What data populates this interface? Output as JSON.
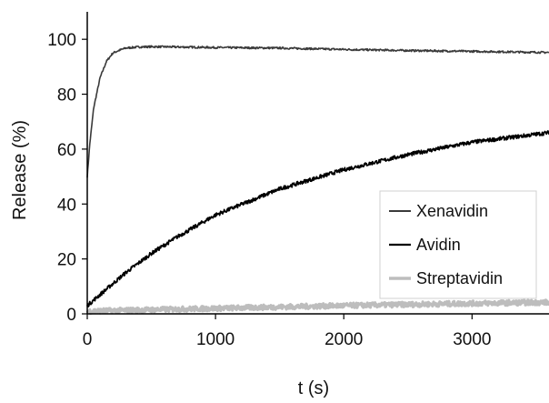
{
  "chart_data": {
    "type": "line",
    "xlabel": "t (s)",
    "ylabel": "Release (%)",
    "xlim": [
      0,
      3600
    ],
    "ylim": [
      0,
      110
    ],
    "x_ticks": [
      0,
      1000,
      2000,
      3000
    ],
    "y_ticks": [
      0,
      20,
      40,
      60,
      80,
      100
    ],
    "grid": false,
    "legend_position": "right-middle",
    "series": [
      {
        "name": "Xenavidin",
        "color": "#3a3a3a",
        "x": [
          0,
          20,
          50,
          100,
          150,
          200,
          250,
          300,
          350,
          400,
          500,
          700,
          1000,
          1500,
          2000,
          2500,
          3000,
          3600
        ],
        "y": [
          50,
          62,
          75,
          86,
          92,
          95,
          96,
          96.8,
          97,
          97.2,
          97.3,
          97.2,
          97,
          96.8,
          96.3,
          95.9,
          95.6,
          95.2
        ]
      },
      {
        "name": "Avidin",
        "color": "#000000",
        "x": [
          0,
          100,
          200,
          300,
          400,
          500,
          700,
          1000,
          1500,
          2000,
          2500,
          3000,
          3600
        ],
        "y": [
          3,
          7,
          11,
          15,
          18.5,
          22,
          28,
          36,
          45.5,
          52.5,
          58,
          62.5,
          66
        ]
      },
      {
        "name": "Streptavidin",
        "color": "#bdbdbd",
        "x": [
          0,
          500,
          1000,
          1500,
          2000,
          2500,
          3000,
          3600
        ],
        "y": [
          1.0,
          1.5,
          2.0,
          2.5,
          3.0,
          3.4,
          3.8,
          4.2
        ]
      }
    ]
  }
}
